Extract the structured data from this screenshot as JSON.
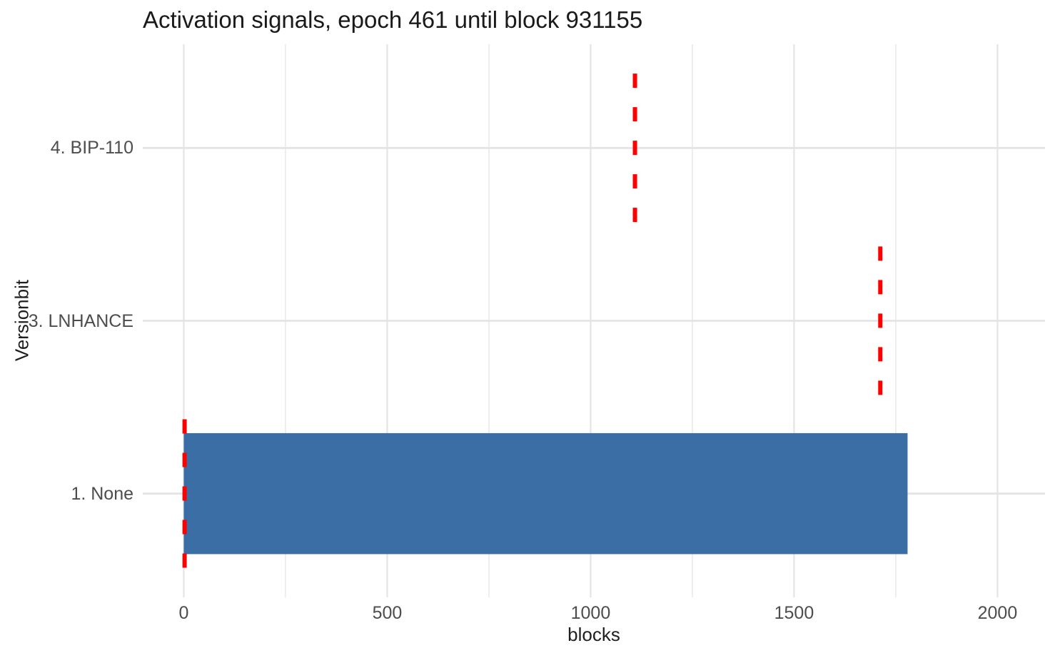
{
  "title": "Activation signals, epoch 461 until block 931155",
  "colors": {
    "background": "#FFFFFF",
    "bar_fill": "#3A6EA5",
    "signal_marker": "#FF0000",
    "grid_major": "#E4E4E4",
    "grid_minor": "#ECECEC",
    "tick_text": "#4D4D4D",
    "axis_title_text": "#1F1F1F",
    "title_text": "#1A1A1A"
  },
  "chart_data": {
    "type": "bar",
    "orientation": "horizontal",
    "title": "Activation signals, epoch 461 until block 931155",
    "xlabel": "blocks",
    "ylabel": "Versionbit",
    "categories": [
      "4. BIP-110",
      "3. LNHANCE",
      "1. None"
    ],
    "series": [
      {
        "name": "blocks-count-bar",
        "type": "bar",
        "color": "#3A6EA5",
        "points": [
          {
            "category": "1. None",
            "value": 1779
          }
        ]
      },
      {
        "name": "signal-marker-dashed-line",
        "type": "dashed-vertical-marker",
        "color": "#FF0000",
        "points": [
          {
            "category": "4. BIP-110",
            "value": 1109
          },
          {
            "category": "3. LNHANCE",
            "value": 1712
          },
          {
            "category": "1. None",
            "value": 2
          }
        ]
      }
    ],
    "xlim": [
      0,
      2016
    ],
    "x_expansion": 0.05,
    "x_ticks": [
      0,
      500,
      1000,
      1500,
      2000
    ],
    "x_minor_step": 250,
    "grid": true,
    "legend": false,
    "bar_width_fraction": 0.7,
    "marker_span_fraction": 0.86,
    "marker_stroke_width": 6,
    "marker_dash_pattern": [
      20,
      27
    ]
  }
}
